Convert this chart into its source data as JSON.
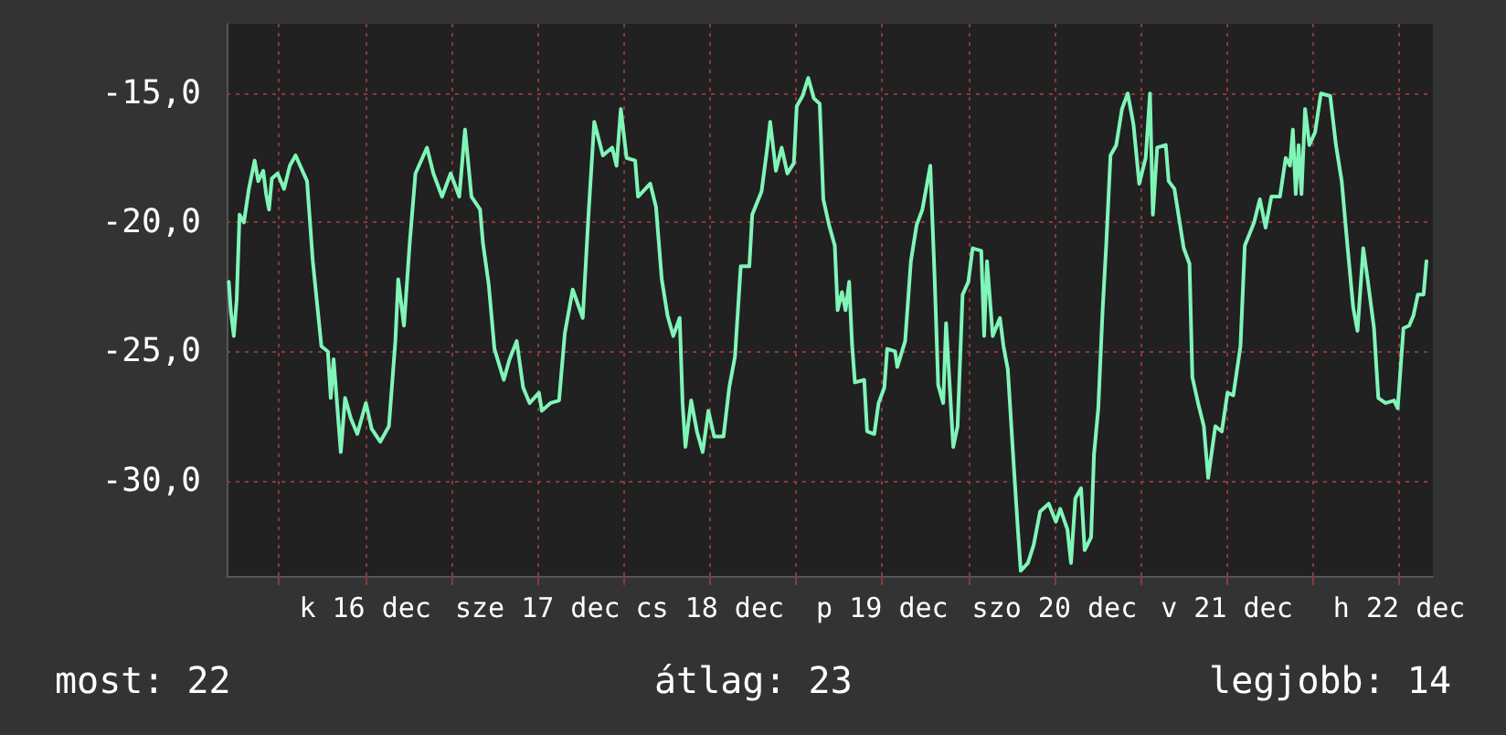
{
  "chart_data": {
    "type": "line",
    "xlim": [
      "--12-15T16:42",
      "--12-22T16:42"
    ],
    "ylim": [
      -33.7,
      -12.3
    ],
    "xticks": [
      {
        "value": "--12-16T00:00",
        "label": null
      },
      {
        "value": "--12-16T12:00",
        "label": "k 16 dec"
      },
      {
        "value": "--12-17T00:00",
        "label": null
      },
      {
        "value": "--12-17T12:00",
        "label": "sze 17 dec"
      },
      {
        "value": "--12-18T00:00",
        "label": null
      },
      {
        "value": "--12-18T12:00",
        "label": "cs 18 dec"
      },
      {
        "value": "--12-19T00:00",
        "label": null
      },
      {
        "value": "--12-19T12:00",
        "label": "p 19 dec"
      },
      {
        "value": "--12-20T00:00",
        "label": null
      },
      {
        "value": "--12-20T12:00",
        "label": "szo 20 dec"
      },
      {
        "value": "--12-21T00:00",
        "label": null
      },
      {
        "value": "--12-21T12:00",
        "label": "v 21 dec"
      },
      {
        "value": "--12-22T00:00",
        "label": null
      },
      {
        "value": "--12-22T12:00",
        "label": "h 22 dec"
      }
    ],
    "yticks": [
      {
        "value": -15,
        "label": "-15,0"
      },
      {
        "value": -20,
        "label": "-20,0"
      },
      {
        "value": -25,
        "label": "-25,0"
      },
      {
        "value": -30,
        "label": "-30,0"
      }
    ],
    "grid": true,
    "marker": "none",
    "line_style": "solid",
    "annotations": [
      "most: 22",
      "átlag: 23",
      "legjobb: 14"
    ],
    "series": [
      {
        "color": "#80f5b8",
        "x": [
          "--12-15T17:00",
          "--12-15T17:18",
          "--12-15T17:42",
          "--12-15T18:06",
          "--12-15T18:30",
          "--12-15T19:06",
          "--12-15T19:48",
          "--12-15T20:36",
          "--12-15T21:06",
          "--12-15T21:48",
          "--12-15T22:12",
          "--12-15T22:36",
          "--12-15T23:00",
          "--12-15T23:48",
          "--12-16T00:42",
          "--12-16T01:30",
          "--12-16T02:18",
          "--12-16T03:54",
          "--12-16T04:42",
          "--12-16T05:54",
          "--12-16T06:48",
          "--12-16T07:12",
          "--12-16T07:36",
          "--12-16T08:36",
          "--12-16T09:12",
          "--12-16T10:00",
          "--12-16T10:54",
          "--12-16T12:06",
          "--12-16T12:54",
          "--12-16T14:06",
          "--12-16T15:18",
          "--12-16T16:12",
          "--12-16T16:36",
          "--12-16T17:24",
          "--12-16T18:12",
          "--12-16T19:00",
          "--12-16T20:36",
          "--12-16T21:30",
          "--12-16T22:42",
          "--12-16T23:54",
          "--12-17T01:06",
          "--12-17T01:54",
          "--12-17T02:48",
          "--12-17T04:00",
          "--12-17T04:24",
          "--12-17T05:12",
          "--12-17T06:00",
          "--12-17T07:18",
          "--12-17T08:06",
          "--12-17T09:06",
          "--12-17T10:00",
          "--12-17T10:54",
          "--12-17T12:12",
          "--12-17T12:36",
          "--12-17T13:48",
          "--12-17T15:00",
          "--12-17T15:48",
          "--12-17T16:54",
          "--12-17T18:18",
          "--12-17T19:06",
          "--12-17T19:54",
          "--12-17T21:06",
          "--12-17T22:24",
          "--12-17T23:00",
          "--12-17T23:36",
          "--12-18T00:24",
          "--12-18T01:36",
          "--12-18T02:00",
          "--12-18T03:42",
          "--12-18T04:30",
          "--12-18T05:18",
          "--12-18T06:06",
          "--12-18T06:54",
          "--12-18T07:48",
          "--12-18T08:12",
          "--12-18T08:36",
          "--12-18T09:24",
          "--12-18T10:12",
          "--12-18T11:00",
          "--12-18T11:48",
          "--12-18T12:36",
          "--12-18T13:54",
          "--12-18T14:42",
          "--12-18T15:30",
          "--12-18T16:18",
          "--12-18T17:30",
          "--12-18T17:54",
          "--12-18T19:12",
          "--12-18T20:00",
          "--12-18T20:24",
          "--12-18T21:12",
          "--12-18T22:00",
          "--12-18T22:48",
          "--12-18T23:42",
          "--12-19T00:06",
          "--12-19T00:54",
          "--12-19T01:42",
          "--12-19T02:30",
          "--12-19T03:18",
          "--12-19T03:48",
          "--12-19T04:36",
          "--12-19T05:24",
          "--12-19T05:48",
          "--12-19T06:24",
          "--12-19T06:54",
          "--12-19T07:24",
          "--12-19T07:48",
          "--12-19T08:12",
          "--12-19T09:30",
          "--12-19T09:54",
          "--12-19T10:54",
          "--12-19T11:30",
          "--12-19T12:18",
          "--12-19T12:42",
          "--12-19T13:48",
          "--12-19T14:06",
          "--12-19T15:12",
          "--12-19T16:00",
          "--12-19T16:48",
          "--12-19T17:36",
          "--12-19T18:42",
          "--12-19T19:18",
          "--12-19T19:48",
          "--12-19T20:30",
          "--12-19T20:54",
          "--12-19T21:54",
          "--12-19T22:30",
          "--12-19T23:12",
          "--12-20T00:00",
          "--12-20T00:36",
          "--12-20T01:48",
          "--12-20T02:12",
          "--12-20T02:36",
          "--12-20T03:24",
          "--12-20T04:24",
          "--12-20T04:54",
          "--12-20T05:30",
          "--12-20T06:18",
          "--12-20T06:54",
          "--12-20T07:18",
          "--12-20T08:18",
          "--12-20T09:06",
          "--12-20T10:00",
          "--12-20T11:12",
          "--12-20T12:12",
          "--12-20T12:48",
          "--12-20T13:48",
          "--12-20T14:18",
          "--12-20T14:54",
          "--12-20T15:42",
          "--12-20T16:12",
          "--12-20T17:06",
          "--12-20T17:30",
          "--12-20T18:06",
          "--12-20T18:42",
          "--12-20T19:12",
          "--12-20T19:48",
          "--12-20T20:36",
          "--12-20T21:24",
          "--12-20T22:12",
          "--12-20T23:00",
          "--12-20T23:48",
          "--12-21T00:42",
          "--12-21T01:18",
          "--12-21T01:42",
          "--12-21T02:18",
          "--12-21T03:30",
          "--12-21T03:54",
          "--12-21T04:42",
          "--12-21T06:00",
          "--12-21T06:48",
          "--12-21T07:12",
          "--12-21T08:00",
          "--12-21T08:48",
          "--12-21T09:24",
          "--12-21T10:24",
          "--12-21T11:18",
          "--12-21T12:06",
          "--12-21T12:54",
          "--12-21T13:54",
          "--12-21T14:30",
          "--12-21T15:48",
          "--12-21T16:36",
          "--12-21T17:24",
          "--12-21T18:12",
          "--12-21T19:24",
          "--12-21T20:12",
          "--12-21T20:48",
          "--12-21T21:12",
          "--12-21T21:36",
          "--12-21T22:00",
          "--12-21T22:24",
          "--12-21T22:54",
          "--12-21T23:30",
          "--12-22T00:18",
          "--12-22T01:06",
          "--12-22T02:24",
          "--12-22T03:12",
          "--12-22T04:00",
          "--12-22T04:48",
          "--12-22T05:36",
          "--12-22T06:12",
          "--12-22T07:00",
          "--12-22T07:42",
          "--12-22T08:30",
          "--12-22T09:06",
          "--12-22T10:06",
          "--12-22T11:18",
          "--12-22T11:48",
          "--12-22T12:36",
          "--12-22T13:24",
          "--12-22T14:00",
          "--12-22T14:36",
          "--12-22T15:24",
          "--12-22T15:48"
        ],
        "values": [
          -22.3,
          -23.5,
          -24.4,
          -23.0,
          -19.7,
          -20.0,
          -18.7,
          -17.6,
          -18.4,
          -18.0,
          -18.9,
          -19.5,
          -18.3,
          -18.1,
          -18.7,
          -17.8,
          -17.4,
          -18.4,
          -21.5,
          -24.8,
          -25.0,
          -26.8,
          -25.3,
          -28.9,
          -26.8,
          -27.6,
          -28.2,
          -27.0,
          -28.0,
          -28.5,
          -27.9,
          -24.6,
          -22.2,
          -24.0,
          -20.8,
          -18.1,
          -17.1,
          -18.1,
          -19.0,
          -18.1,
          -19.0,
          -16.4,
          -19.0,
          -19.5,
          -20.8,
          -22.4,
          -24.9,
          -26.1,
          -25.3,
          -24.6,
          -26.4,
          -27.0,
          -26.6,
          -27.3,
          -27.0,
          -26.9,
          -24.3,
          -22.6,
          -23.7,
          -19.7,
          -16.1,
          -17.4,
          -17.1,
          -17.8,
          -15.6,
          -17.5,
          -17.6,
          -19.0,
          -18.5,
          -19.4,
          -22.2,
          -23.6,
          -24.4,
          -23.7,
          -27.0,
          -28.7,
          -26.9,
          -28.1,
          -28.9,
          -27.3,
          -28.3,
          -28.3,
          -26.4,
          -25.2,
          -21.7,
          -21.7,
          -19.7,
          -18.8,
          -17.1,
          -16.1,
          -18.0,
          -17.1,
          -18.1,
          -17.7,
          -15.5,
          -15.1,
          -14.4,
          -15.2,
          -15.4,
          -19.1,
          -20.1,
          -20.9,
          -23.4,
          -22.7,
          -23.4,
          -22.3,
          -24.7,
          -26.2,
          -26.1,
          -28.1,
          -28.2,
          -27.0,
          -26.4,
          -24.9,
          -25.0,
          -25.6,
          -24.6,
          -21.5,
          -20.1,
          -19.5,
          -17.8,
          -22.1,
          -26.3,
          -27.0,
          -23.9,
          -28.7,
          -27.9,
          -22.8,
          -22.3,
          -21.0,
          -21.1,
          -24.4,
          -21.5,
          -24.4,
          -23.7,
          -24.8,
          -25.7,
          -29.3,
          -31.9,
          -33.5,
          -33.2,
          -32.5,
          -31.2,
          -30.9,
          -31.6,
          -31.1,
          -31.9,
          -33.2,
          -30.7,
          -30.3,
          -32.7,
          -32.2,
          -29.0,
          -27.2,
          -23.4,
          -20.9,
          -17.4,
          -17.0,
          -15.6,
          -15.0,
          -16.2,
          -18.5,
          -17.5,
          -15.0,
          -19.7,
          -17.1,
          -17.0,
          -18.4,
          -18.7,
          -21.0,
          -21.6,
          -26.0,
          -27.0,
          -27.9,
          -29.9,
          -27.9,
          -28.1,
          -26.6,
          -26.7,
          -24.8,
          -20.9,
          -20.0,
          -19.1,
          -20.2,
          -19.0,
          -19.0,
          -17.5,
          -17.8,
          -16.4,
          -18.9,
          -17.0,
          -18.9,
          -15.6,
          -17.0,
          -16.5,
          -15.0,
          -15.1,
          -17.0,
          -18.4,
          -20.9,
          -23.3,
          -24.2,
          -21.0,
          -22.4,
          -24.1,
          -26.8,
          -27.0,
          -26.9,
          -27.2,
          -24.1,
          -24.0,
          -23.6,
          -22.8,
          -22.8,
          -21.5
        ]
      }
    ]
  }
}
